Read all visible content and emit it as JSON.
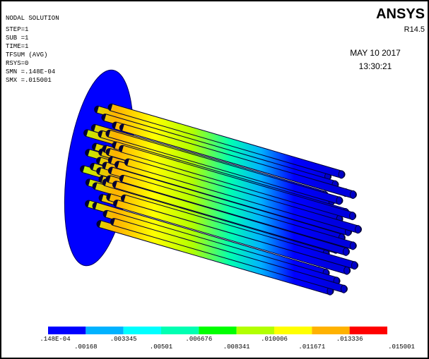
{
  "header": {
    "title": "NODAL SOLUTION",
    "lines": [
      "STEP=1",
      "SUB =1",
      "TIME=1",
      "TFSUM    (AVG)",
      "RSYS=0",
      "SMN =.148E-04",
      "SMX =.015001"
    ]
  },
  "logo": {
    "name": "ANSYS",
    "release": "R14.5"
  },
  "timestamp": {
    "date": "MAY 10 2017",
    "time": "13:30:21"
  },
  "legend": {
    "colors": [
      "#0000ff",
      "#00b2ff",
      "#00ffff",
      "#00ffb2",
      "#00ff00",
      "#b2ff00",
      "#ffff00",
      "#ffb200",
      "#ff0000"
    ],
    "labels": [
      ".148E-04",
      ".00168",
      ".003345",
      ".00501",
      ".006676",
      ".008341",
      ".010006",
      ".011671",
      ".013336",
      ".015001"
    ]
  }
}
